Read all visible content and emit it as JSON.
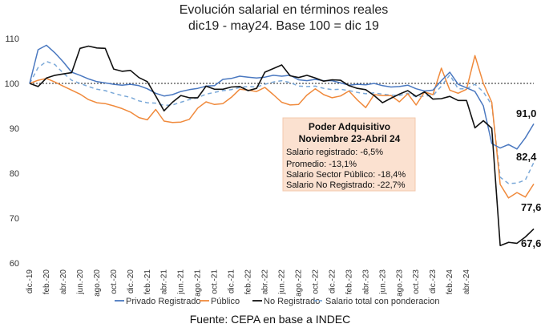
{
  "chart_data": {
    "type": "line",
    "title": [
      "Evolución salarial en términos reales",
      "dic19 - may24. Base 100 = dic 19"
    ],
    "ylim": [
      60,
      110
    ],
    "yticks": [
      60,
      70,
      80,
      90,
      100,
      110
    ],
    "reference_line": 100,
    "x_labels": [
      "dic.-19",
      "feb.-20",
      "abr.-20",
      "jun.-20",
      "ago.-20",
      "oct.-20",
      "dic.-20",
      "feb.-21",
      "abr.-21",
      "jun.-21",
      "ago.-21",
      "oct.-21",
      "dic.-21",
      "feb.-22",
      "abr.-22",
      "jun.-22",
      "ago.-22",
      "oct.-22",
      "dic.-22",
      "feb.-23",
      "abr.-23",
      "jun.-23",
      "ago.-23",
      "oct.-23",
      "dic.-23",
      "feb.-24",
      "abr.-24"
    ],
    "series": [
      {
        "name": "Privado Registrado",
        "color": "#4a78c0",
        "style": "solid",
        "values": [
          100,
          107.5,
          108.5,
          106.8,
          104.8,
          102.5,
          101.8,
          101,
          100.4,
          100.1,
          99.8,
          99.6,
          99.8,
          99.5,
          98.8,
          97.8,
          97.2,
          97.5,
          98.2,
          98.6,
          98.9,
          99.4,
          99.5,
          100.9,
          101.1,
          101.6,
          101.4,
          101.2,
          101.4,
          101.8,
          101.6,
          101.8,
          100.8,
          100.6,
          100.9,
          100.6,
          100.6,
          100.1,
          99.6,
          99.8,
          99.7,
          100,
          99.5,
          99.2,
          99.3,
          99.6,
          98.8,
          98.3,
          98.5,
          100.6,
          102.5,
          99.8,
          99,
          98.2,
          95,
          86.6,
          85.6,
          86.4,
          85.4,
          87.9,
          91
        ]
      },
      {
        "name": "Público",
        "color": "#f08a3c",
        "style": "solid",
        "values": [
          100,
          100.7,
          101.1,
          100.3,
          99.4,
          98.5,
          97.6,
          96.4,
          95.7,
          95.5,
          95,
          94.4,
          93.6,
          92.4,
          91.9,
          94.2,
          91.6,
          91.3,
          91.4,
          92,
          94.5,
          95.9,
          95.3,
          95.5,
          96.9,
          98.7,
          98.5,
          98.2,
          99.1,
          97.5,
          95.8,
          95.2,
          95.3,
          97.4,
          98.8,
          97.5,
          96.8,
          97.2,
          98.3,
          96.3,
          94.6,
          97.5,
          97.3,
          97.3,
          95.9,
          97.7,
          95.2,
          98.1,
          97.5,
          103.4,
          98.5,
          97.8,
          98.7,
          106.2,
          100,
          95.8,
          77.5,
          74.5,
          75.7,
          74.7,
          77.6
        ]
      },
      {
        "name": "No Registrado",
        "color": "#111111",
        "style": "solid",
        "values": [
          100,
          99.3,
          101.2,
          101.8,
          102.1,
          102.4,
          107.8,
          108.3,
          107.9,
          107.8,
          103.2,
          102.7,
          102.9,
          101.3,
          100.4,
          97.2,
          93.9,
          95.8,
          97.3,
          96.8,
          96.8,
          99.4,
          98.7,
          98.7,
          99.2,
          99.3,
          98.4,
          98.9,
          102.5,
          103.3,
          104.1,
          101.7,
          101.3,
          101.8,
          101.2,
          100.5,
          100.8,
          100.7,
          99.5,
          98.9,
          98.6,
          97.3,
          95.7,
          96.7,
          97.6,
          98.4,
          97.1,
          98.1,
          96.5,
          96.6,
          97.1,
          96.2,
          96.2,
          90.1,
          91.7,
          90,
          63.9,
          64.6,
          64.4,
          65.8,
          67.6
        ]
      },
      {
        "name": "Salario total con ponderacion",
        "color": "#7aa8d8",
        "style": "dashed",
        "values": [
          100,
          103.5,
          104.9,
          104.2,
          102.3,
          100.7,
          100,
          99.3,
          98.7,
          98.4,
          97.8,
          97.3,
          96.9,
          96.1,
          95.7,
          95.6,
          95.1,
          95.2,
          95.8,
          96.4,
          96.8,
          97.6,
          98,
          98.4,
          98.6,
          99.1,
          99.3,
          99.2,
          99.8,
          100.3,
          100.6,
          100.2,
          99.4,
          99.3,
          99.4,
          98.9,
          98.6,
          98.7,
          98.4,
          98,
          97.7,
          97.9,
          97.6,
          97.4,
          97.3,
          97.8,
          97,
          97.2,
          97.3,
          99.4,
          101.9,
          98.8,
          98.8,
          99.8,
          98.1,
          95.2,
          79.1,
          77.7,
          77.8,
          78.5,
          82.4
        ]
      }
    ],
    "end_labels": [
      "91,0",
      "82,4",
      "77,6",
      "67,6"
    ],
    "annotation": {
      "title": [
        "Poder Adquisitivo",
        "Noviembre 23-Abril 24"
      ],
      "lines": [
        "Salario registrado: -6,5%",
        "Promedio: -13,1%",
        "Salario Sector Público: -18,4%",
        "Salario No Registrado: -22,7%"
      ]
    },
    "source": "Fuente: CEPA en base a INDEC"
  }
}
